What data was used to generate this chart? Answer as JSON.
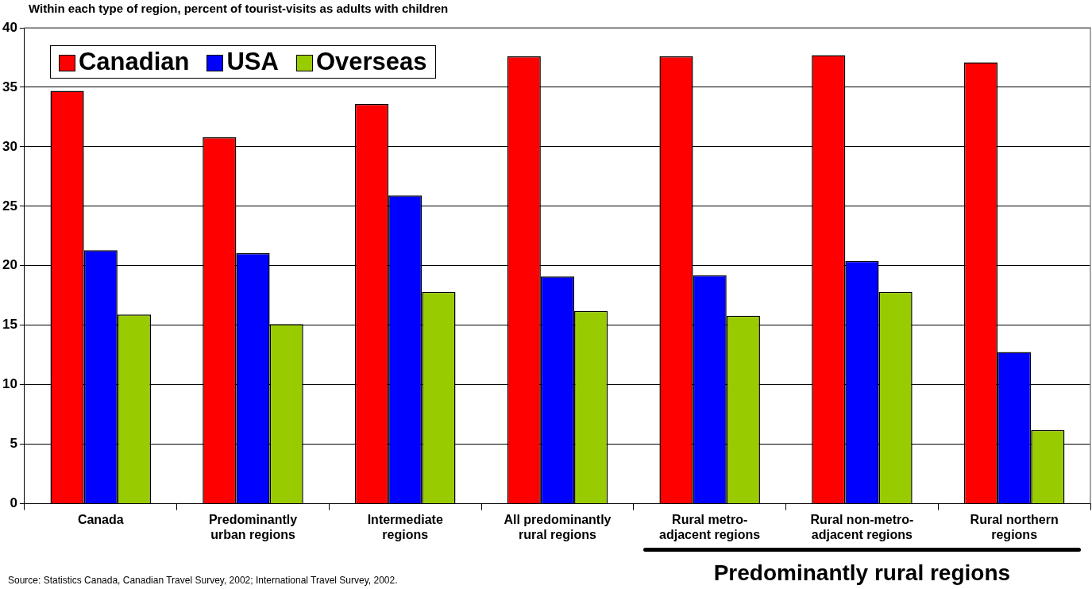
{
  "chart_data": {
    "type": "bar",
    "title": "Within each type of region, percent of tourist-visits as adults with children",
    "categories": [
      "Canada",
      "Predominantly urban regions",
      "Intermediate regions",
      "All predominantly rural regions",
      "Rural metro-adjacent regions",
      "Rural non-metro-adjacent regions",
      "Rural northern regions"
    ],
    "series": [
      {
        "name": "Canadian",
        "color": "#ff0000",
        "values": [
          34.7,
          30.8,
          33.6,
          37.6,
          37.6,
          37.7,
          37.1
        ]
      },
      {
        "name": "USA",
        "color": "#0000ff",
        "values": [
          21.3,
          21.05,
          25.9,
          19.1,
          19.2,
          20.4,
          12.75
        ]
      },
      {
        "name": "Overseas",
        "color": "#99cc00",
        "values": [
          15.9,
          15.1,
          17.8,
          16.2,
          15.8,
          17.8,
          6.2
        ]
      }
    ],
    "ylim": [
      0,
      40
    ],
    "yticks": [
      0,
      5,
      10,
      15,
      20,
      25,
      30,
      35,
      40
    ],
    "grid": "y",
    "legend": "top left",
    "annotations": [
      "Source: Statistics Canada, Canadian Travel Survey, 2002; International Travel Survey, 2002.",
      "Predominantly rural regions"
    ]
  }
}
